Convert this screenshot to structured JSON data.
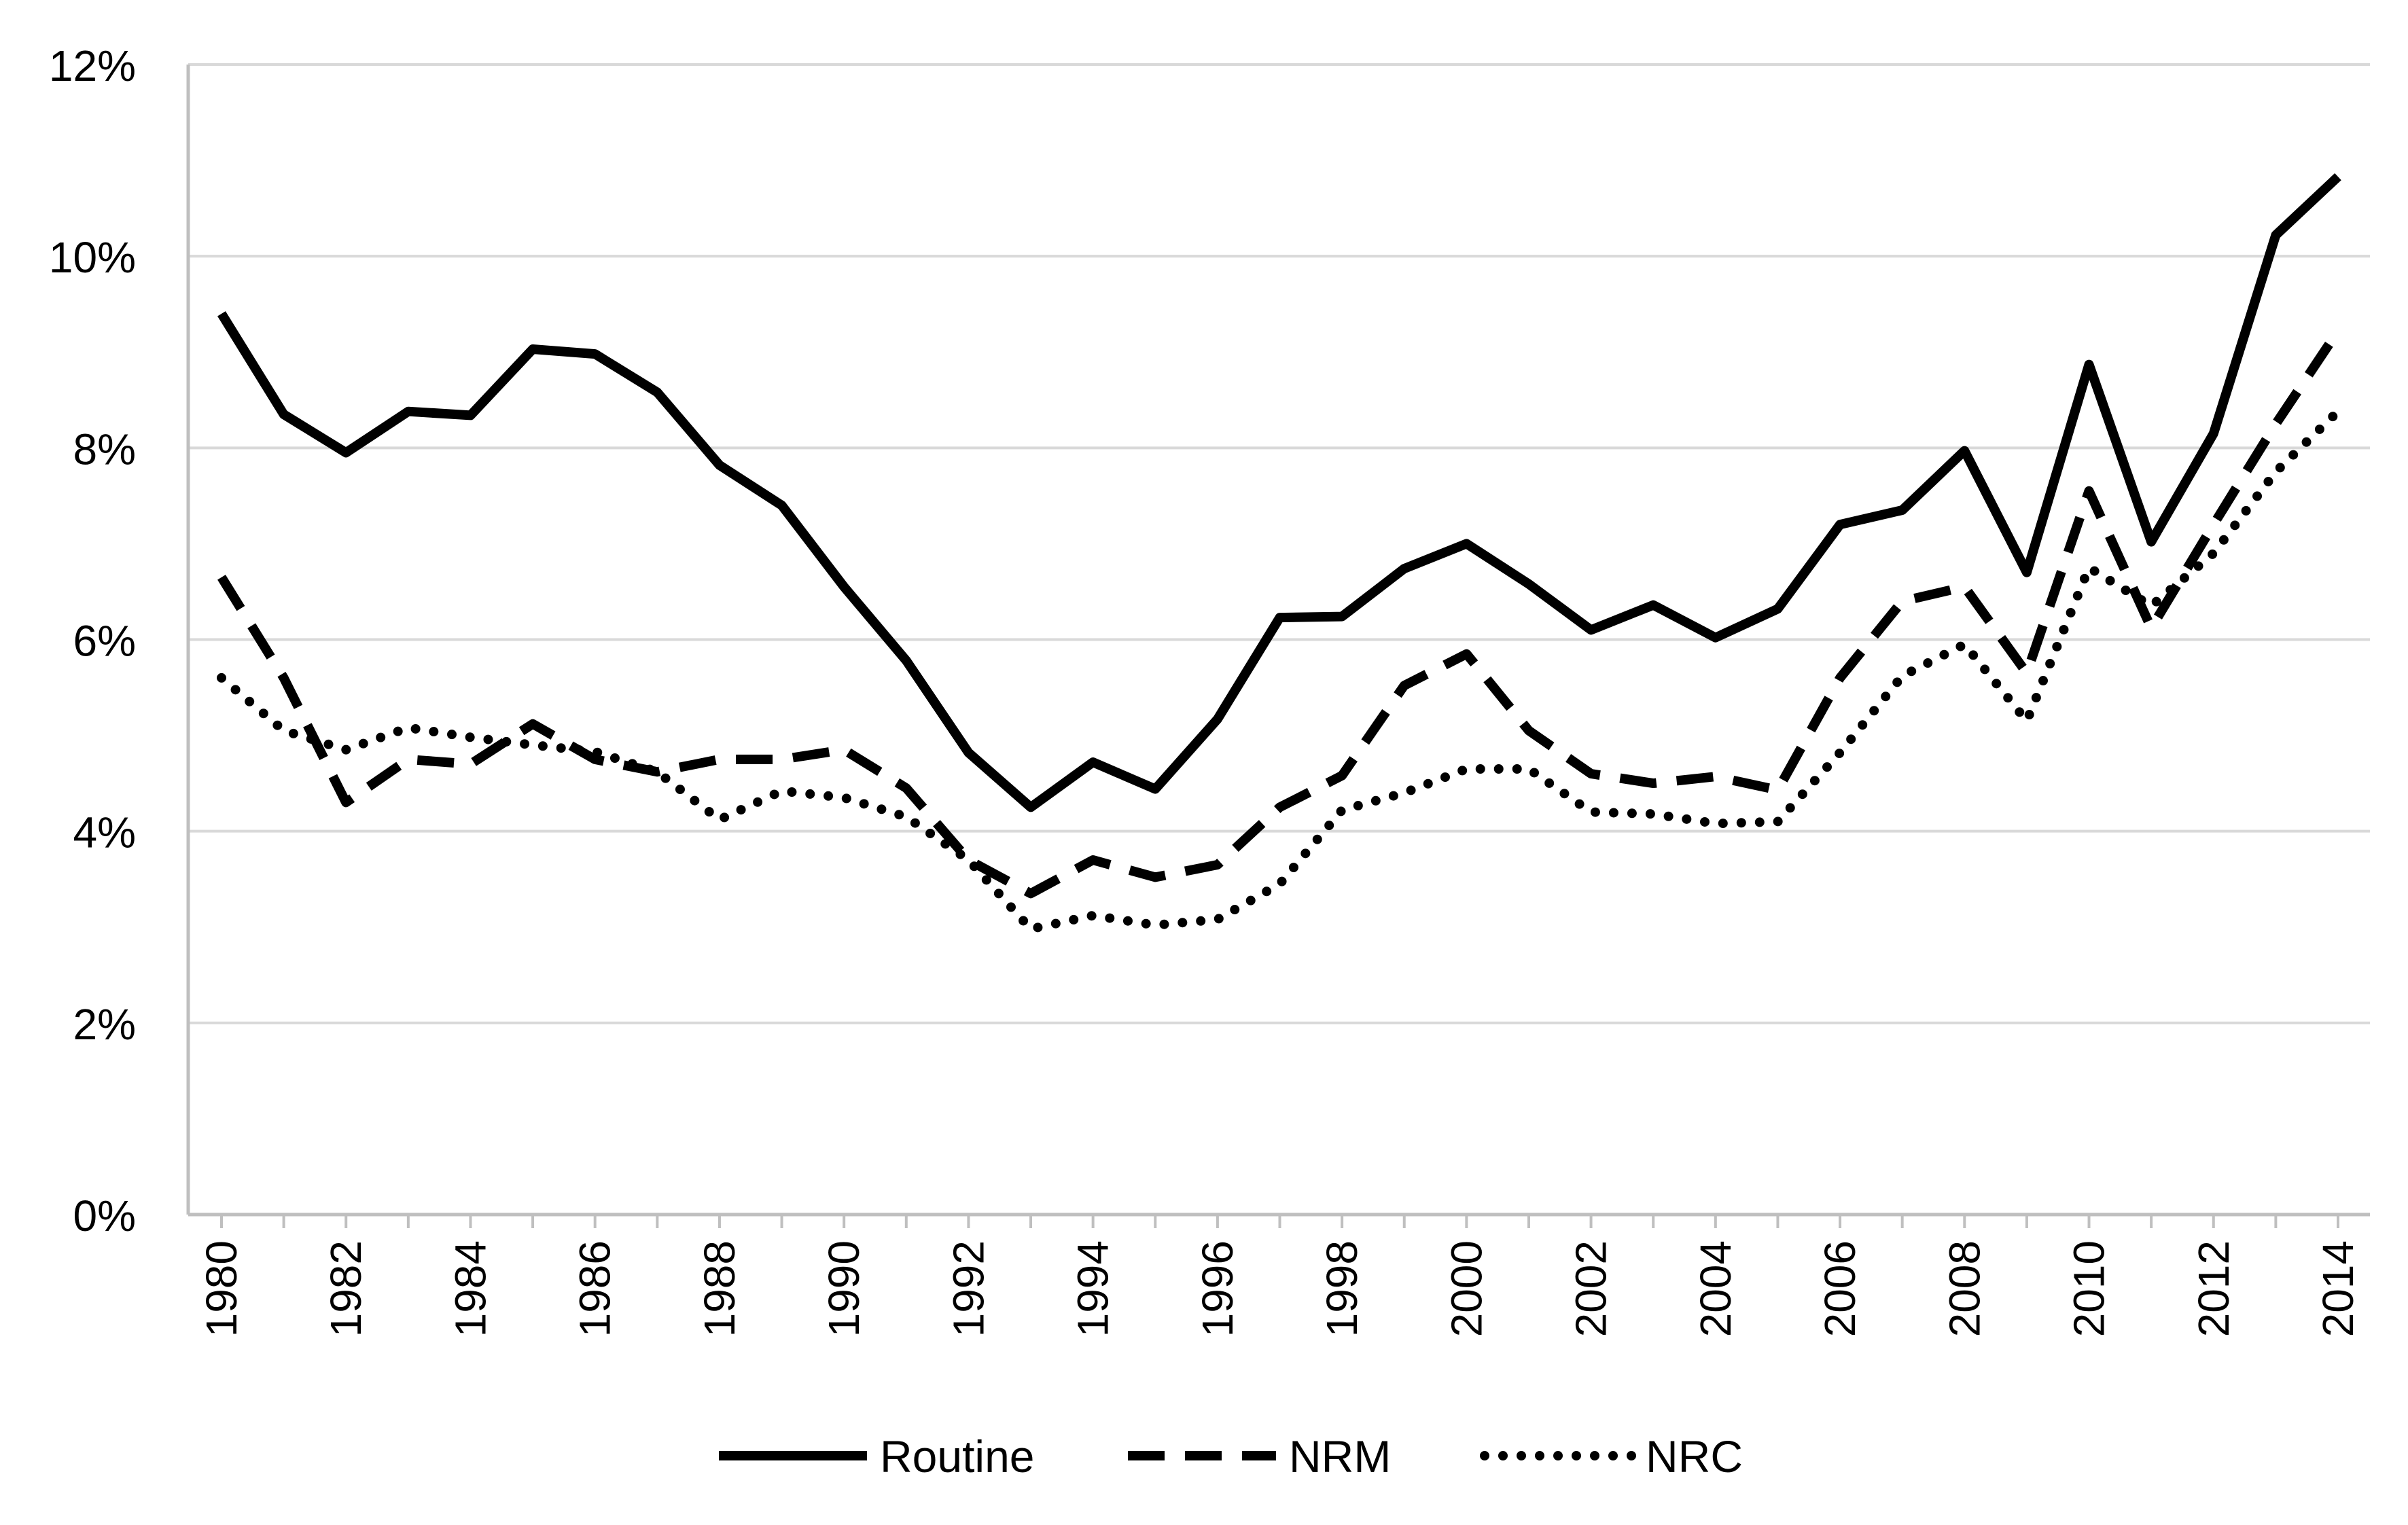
{
  "chart_data": {
    "type": "line",
    "title": "",
    "xlabel": "",
    "ylabel": "",
    "x": [
      1980,
      1981,
      1982,
      1983,
      1984,
      1985,
      1986,
      1987,
      1988,
      1989,
      1990,
      1991,
      1992,
      1993,
      1994,
      1995,
      1996,
      1997,
      1998,
      1999,
      2000,
      2001,
      2002,
      2003,
      2004,
      2005,
      2006,
      2007,
      2008,
      2009,
      2010,
      2011,
      2012,
      2013,
      2014
    ],
    "x_tick_labels": [
      "1980",
      "1982",
      "1984",
      "1986",
      "1988",
      "1990",
      "1992",
      "1994",
      "1996",
      "1998",
      "2000",
      "2002",
      "2004",
      "2006",
      "2008",
      "2010",
      "2012",
      "2014"
    ],
    "y_ticks": [
      0,
      2,
      4,
      6,
      8,
      10,
      12
    ],
    "y_tick_labels": [
      "0%",
      "2%",
      "4%",
      "6%",
      "8%",
      "10%",
      "12%"
    ],
    "ylim": [
      0,
      12
    ],
    "y_unit": "%",
    "grid": "horizontal",
    "legend_position": "bottom",
    "series": [
      {
        "name": "Routine",
        "style": "solid",
        "color": "#000000",
        "values": [
          9.4,
          8.35,
          7.95,
          8.38,
          8.34,
          9.03,
          8.98,
          8.58,
          7.82,
          7.4,
          6.55,
          5.78,
          4.82,
          4.25,
          4.72,
          4.44,
          5.17,
          6.23,
          6.24,
          6.74,
          7.0,
          6.58,
          6.1,
          6.36,
          6.02,
          6.32,
          7.2,
          7.35,
          7.97,
          6.7,
          8.87,
          7.02,
          8.15,
          10.22,
          10.83
        ]
      },
      {
        "name": "NRM",
        "style": "dashed",
        "color": "#000000",
        "values": [
          6.65,
          5.6,
          4.3,
          4.75,
          4.7,
          5.12,
          4.75,
          4.62,
          4.75,
          4.75,
          4.85,
          4.45,
          3.7,
          3.35,
          3.7,
          3.52,
          3.65,
          4.25,
          4.58,
          5.52,
          5.85,
          5.05,
          4.6,
          4.5,
          4.57,
          4.43,
          5.6,
          6.4,
          6.55,
          5.65,
          7.55,
          6.12,
          7.2,
          8.25,
          9.22
        ]
      },
      {
        "name": "NRC",
        "style": "dotted",
        "color": "#000000",
        "values": [
          5.6,
          5.05,
          4.85,
          5.08,
          4.98,
          4.9,
          4.83,
          4.62,
          4.12,
          4.42,
          4.35,
          4.15,
          3.7,
          2.98,
          3.12,
          3.02,
          3.08,
          3.45,
          4.22,
          4.4,
          4.65,
          4.65,
          4.2,
          4.18,
          4.08,
          4.1,
          4.82,
          5.62,
          5.95,
          5.15,
          6.75,
          6.35,
          6.9,
          7.75,
          8.38
        ]
      }
    ]
  }
}
